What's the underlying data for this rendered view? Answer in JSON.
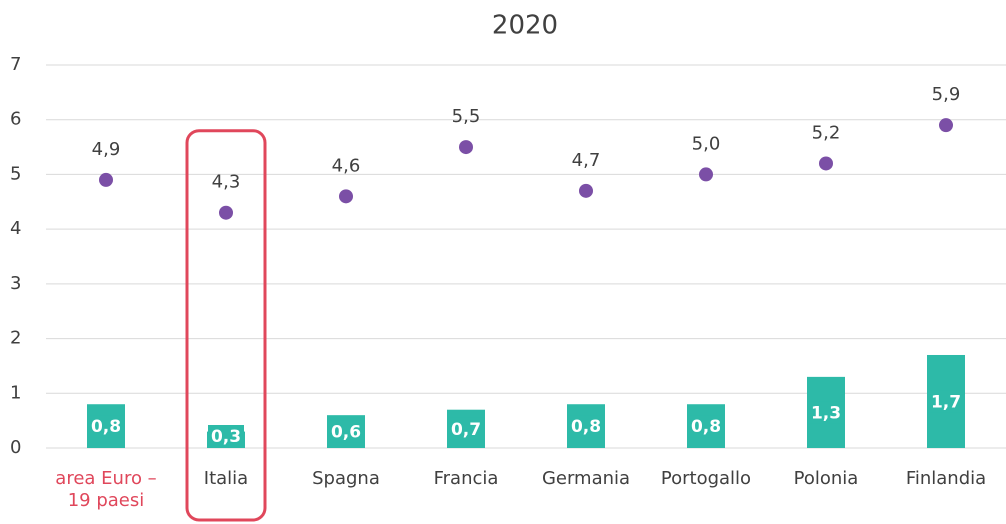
{
  "chart_data": {
    "type": "combo",
    "title": "2020",
    "categories": [
      "area Euro – 19 paesi",
      "Italia",
      "Spagna",
      "Francia",
      "Germania",
      "Portogallo",
      "Polonia",
      "Finlandia"
    ],
    "series": [
      {
        "type": "bar",
        "color": "#2dbaa8",
        "values": [
          0.8,
          0.3,
          0.6,
          0.7,
          0.8,
          0.8,
          1.3,
          1.7
        ],
        "value_labels": [
          "0,8",
          "0,3",
          "0,6",
          "0,7",
          "0,8",
          "0,8",
          "1,3",
          "1,7"
        ]
      },
      {
        "type": "scatter",
        "color": "#7b4fa6",
        "values": [
          4.9,
          4.3,
          4.6,
          5.5,
          4.7,
          5.0,
          5.2,
          5.9
        ],
        "value_labels": [
          "4,9",
          "4,3",
          "4,6",
          "5,5",
          "4,7",
          "5,0",
          "5,2",
          "5,9"
        ]
      }
    ],
    "ylim": [
      0,
      7
    ],
    "yticks": [
      0,
      1,
      2,
      3,
      4,
      5,
      6,
      7
    ],
    "grid": true,
    "highlight_color": "#e0475b",
    "highlighted_label": 0,
    "highlight_box": 1
  }
}
